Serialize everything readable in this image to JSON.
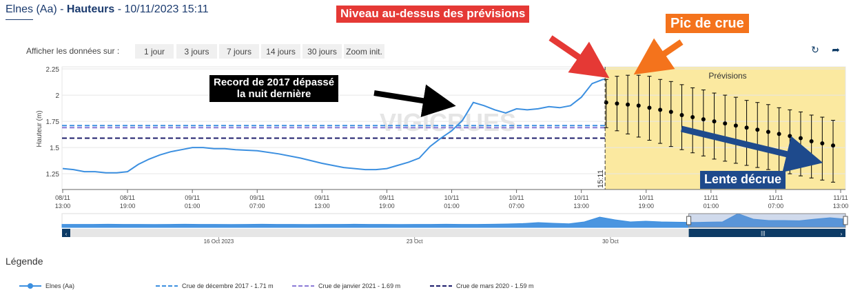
{
  "header": {
    "station": "Elnes (Aa)",
    "separator1": " - ",
    "kind": "Hauteurs",
    "separator2": " - ",
    "datetime": "10/11/2023 15:11"
  },
  "range_selector": {
    "label": "Afficher les données sur :",
    "buttons": [
      "1 jour",
      "3 jours",
      "7 jours",
      "14 jours",
      "30 jours",
      "Zoom init."
    ],
    "active": "3 jours"
  },
  "toolbar": {
    "refresh_icon": "refresh-icon",
    "share_icon": "share-arrow-icon"
  },
  "annotations": {
    "above_forecast": "Niveau au-dessus des prévisions",
    "flood_peak": "Pic de crue",
    "record": [
      "Record de 2017 dépassé",
      "la nuit dernière"
    ],
    "slow_decrease": "Lente décrue"
  },
  "watermark": "VIGICRUES",
  "colors": {
    "observed": "#3b8fe0",
    "crue_2017": "#3b8fe0",
    "crue_2021": "#8a79d6",
    "crue_2020": "#1c1c6b",
    "forecast_bg": "#fbe9a0",
    "red": "#e53935",
    "orange": "#f4731c",
    "navy": "#1e4a8c"
  },
  "chart_data": {
    "type": "line",
    "ylabel": "Hauteur (m)",
    "ylim": [
      1.1,
      2.27
    ],
    "yticks": [
      1.25,
      1.5,
      1.75,
      2,
      2.25
    ],
    "ytick_labels": [
      "1.25",
      "1.5",
      "1.75",
      "2",
      "2.25"
    ],
    "x_unit": "hours since 08/11 13:00",
    "xlim": [
      0,
      72
    ],
    "xticks": [
      {
        "h": 0,
        "date": "08/11",
        "time": "13:00"
      },
      {
        "h": 6,
        "date": "08/11",
        "time": "19:00"
      },
      {
        "h": 12,
        "date": "09/11",
        "time": "01:00"
      },
      {
        "h": 18,
        "date": "09/11",
        "time": "07:00"
      },
      {
        "h": 24,
        "date": "09/11",
        "time": "13:00"
      },
      {
        "h": 30,
        "date": "09/11",
        "time": "19:00"
      },
      {
        "h": 36,
        "date": "10/11",
        "time": "01:00"
      },
      {
        "h": 42,
        "date": "10/11",
        "time": "07:00"
      },
      {
        "h": 48,
        "date": "10/11",
        "time": "13:00"
      },
      {
        "h": 54,
        "date": "10/11",
        "time": "19:00"
      },
      {
        "h": 60,
        "date": "11/11",
        "time": "01:00"
      },
      {
        "h": 66,
        "date": "11/11",
        "time": "07:00"
      },
      {
        "h": 72,
        "date": "11/11",
        "time": "13:00"
      }
    ],
    "now": {
      "h": 50.2,
      "label": "15:11"
    },
    "forecast_label": "Prévisions",
    "observed": {
      "name": "Elnes (Aa)",
      "x": [
        0,
        1,
        2,
        3,
        4,
        5,
        6,
        7,
        8,
        9,
        10,
        11,
        12,
        13,
        14,
        15,
        16,
        18,
        20,
        22,
        24,
        26,
        28,
        29,
        30,
        31,
        32,
        33,
        34,
        35,
        36,
        37,
        38,
        39,
        40,
        41,
        42,
        43,
        44,
        45,
        46,
        47,
        48,
        49,
        50,
        50.2
      ],
      "y": [
        1.3,
        1.29,
        1.27,
        1.27,
        1.26,
        1.26,
        1.27,
        1.34,
        1.39,
        1.43,
        1.46,
        1.48,
        1.5,
        1.5,
        1.49,
        1.49,
        1.48,
        1.47,
        1.44,
        1.4,
        1.35,
        1.31,
        1.29,
        1.29,
        1.3,
        1.33,
        1.36,
        1.4,
        1.51,
        1.59,
        1.66,
        1.76,
        1.93,
        1.9,
        1.86,
        1.83,
        1.87,
        1.86,
        1.87,
        1.89,
        1.88,
        1.9,
        1.98,
        2.11,
        2.15,
        2.15
      ]
    },
    "thresholds": [
      {
        "name": "Crue de décembre 2017 - 1.71 m",
        "value": 1.71
      },
      {
        "name": "Crue de janvier 2021 - 1.69 m",
        "value": 1.69
      },
      {
        "name": "Crue de mars 2020 - 1.59 m",
        "value": 1.59
      }
    ],
    "forecast": {
      "x": [
        50.3,
        51.3,
        52.3,
        53.3,
        54.3,
        55.3,
        56.3,
        57.3,
        58.3,
        59.3,
        60.3,
        61.3,
        62.3,
        63.3,
        64.3,
        65.3,
        66.3,
        67.3,
        68.3,
        69.3,
        70.3,
        71.3
      ],
      "y": [
        1.93,
        1.92,
        1.91,
        1.9,
        1.88,
        1.86,
        1.84,
        1.81,
        1.79,
        1.77,
        1.75,
        1.73,
        1.71,
        1.69,
        1.67,
        1.65,
        1.63,
        1.61,
        1.59,
        1.56,
        1.54,
        1.52
      ],
      "low": [
        1.69,
        1.66,
        1.63,
        1.6,
        1.57,
        1.54,
        1.51,
        1.48,
        1.45,
        1.42,
        1.39,
        1.37,
        1.35,
        1.33,
        1.31,
        1.29,
        1.27,
        1.25,
        1.23,
        1.21,
        1.19,
        1.17
      ],
      "high": [
        2.15,
        2.18,
        2.19,
        2.19,
        2.18,
        2.15,
        2.13,
        2.1,
        2.07,
        2.05,
        2.02,
        2.0,
        1.98,
        1.95,
        1.93,
        1.91,
        1.88,
        1.86,
        1.84,
        1.81,
        1.79,
        1.76
      ]
    },
    "navigator": {
      "labels": [
        {
          "pos": 0.2,
          "text": "16 Oct 2023"
        },
        {
          "pos": 0.45,
          "text": "23 Oct"
        },
        {
          "pos": 0.7,
          "text": "30 Oct"
        }
      ],
      "profile": [
        0.22,
        0.22,
        0.22,
        0.23,
        0.22,
        0.22,
        0.21,
        0.22,
        0.23,
        0.22,
        0.22,
        0.21,
        0.22,
        0.23,
        0.22,
        0.22,
        0.21,
        0.22,
        0.22,
        0.23,
        0.22,
        0.22,
        0.21,
        0.22,
        0.22,
        0.23,
        0.22,
        0.22,
        0.23,
        0.25,
        0.28,
        0.35,
        0.3,
        0.26,
        0.4,
        0.75,
        0.55,
        0.4,
        0.45,
        0.4,
        0.38,
        0.36,
        0.38,
        0.4,
        1.0,
        0.6,
        0.5,
        0.5,
        0.48,
        0.6,
        0.7,
        0.6
      ],
      "window": [
        0.8,
        1.0
      ]
    }
  },
  "legend": {
    "title": "Légende",
    "items": [
      {
        "label": "Elnes (Aa)",
        "style": "line-marker",
        "color": "#3b8fe0"
      },
      {
        "label": "Crue de décembre 2017 - 1.71 m",
        "style": "dash",
        "color": "#3b8fe0"
      },
      {
        "label": "Crue de janvier 2021 - 1.69 m",
        "style": "dash",
        "color": "#8a79d6"
      },
      {
        "label": "Crue de mars 2020 - 1.59 m",
        "style": "dash",
        "color": "#1c1c6b"
      }
    ]
  }
}
